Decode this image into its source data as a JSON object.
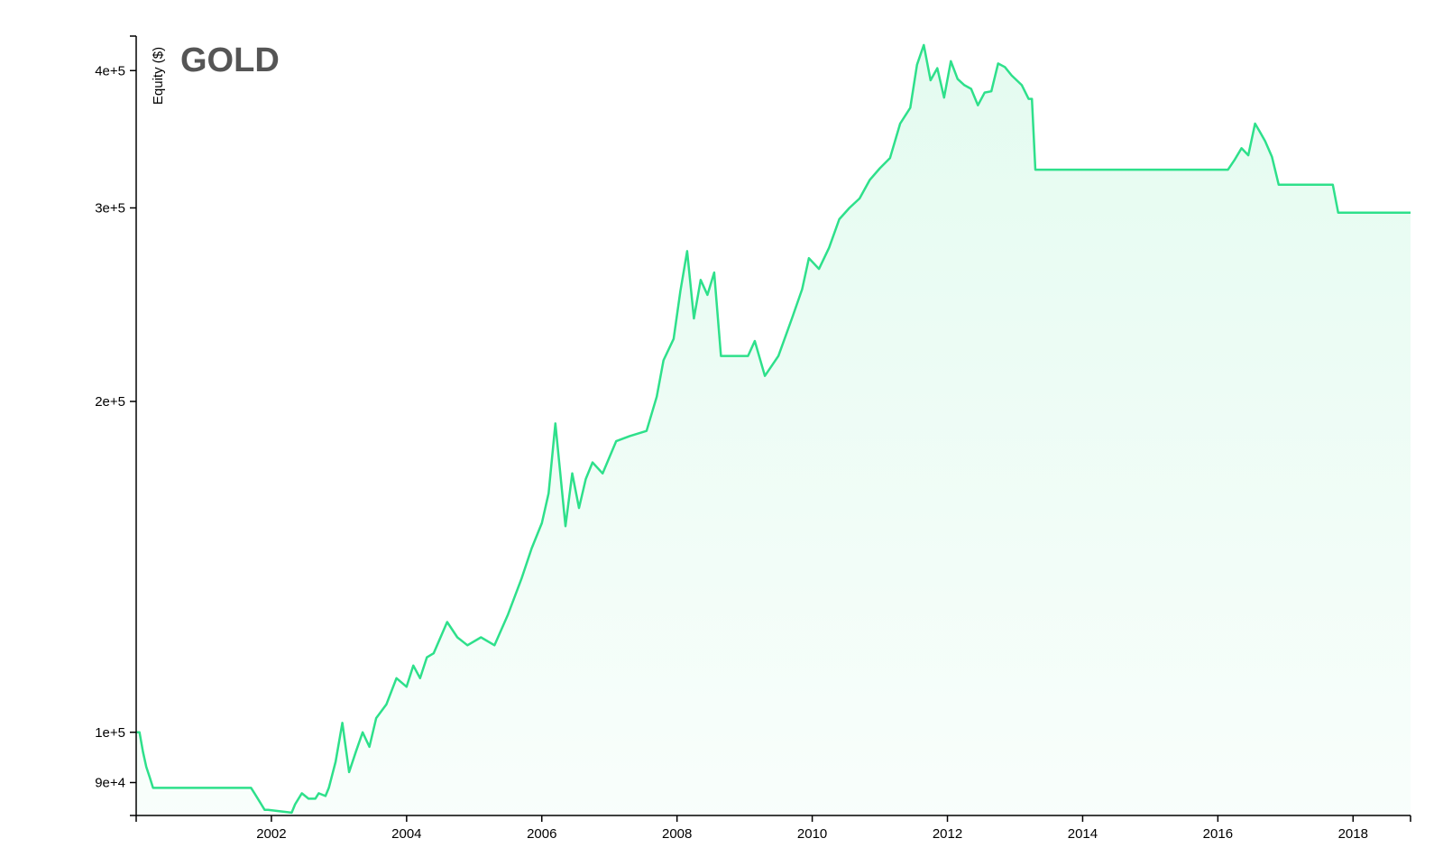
{
  "chart_data": {
    "type": "area",
    "title": "GOLD",
    "xlabel": "",
    "ylabel": "Equity ($)",
    "yscale": "log",
    "ylim": [
      84000,
      430000
    ],
    "xlim": [
      2000.0,
      2018.85
    ],
    "grid": false,
    "legend": "none",
    "line_color": "#2ee08b",
    "fill_color": "#2ee08b",
    "x_ticks": [
      2002,
      2004,
      2006,
      2008,
      2010,
      2012,
      2014,
      2016,
      2018
    ],
    "x_tick_labels": [
      "2002",
      "2004",
      "2006",
      "2008",
      "2010",
      "2012",
      "2014",
      "2016",
      "2018"
    ],
    "y_ticks": [
      90000,
      100000,
      200000,
      300000,
      400000
    ],
    "y_tick_labels": [
      "9e+4",
      "1e+5",
      "2e+5",
      "3e+5",
      "4e+5"
    ],
    "series": [
      {
        "x": [
          2000.0,
          2000.05,
          2000.1,
          2000.15,
          2000.2,
          2000.25,
          2001.7,
          2001.75,
          2001.85,
          2001.9,
          2001.95,
          2002.3,
          2002.35,
          2002.45,
          2002.55,
          2002.65,
          2002.7,
          2002.8,
          2002.85,
          2002.95,
          2003.05,
          2003.15,
          2003.25,
          2003.35,
          2003.45,
          2003.55,
          2003.7,
          2003.85,
          2004.0,
          2004.1,
          2004.2,
          2004.3,
          2004.4,
          2004.6,
          2004.75,
          2004.9,
          2005.1,
          2005.3,
          2005.5,
          2005.7,
          2005.85,
          2006.0,
          2006.1,
          2006.2,
          2006.35,
          2006.45,
          2006.55,
          2006.65,
          2006.75,
          2006.9,
          2007.1,
          2007.3,
          2007.55,
          2007.7,
          2007.8,
          2007.95,
          2008.05,
          2008.15,
          2008.25,
          2008.35,
          2008.45,
          2008.55,
          2008.65,
          2009.05,
          2009.15,
          2009.3,
          2009.5,
          2009.7,
          2009.85,
          2009.95,
          2010.1,
          2010.25,
          2010.4,
          2010.55,
          2010.7,
          2010.85,
          2011.0,
          2011.15,
          2011.3,
          2011.45,
          2011.55,
          2011.65,
          2011.75,
          2011.85,
          2011.95,
          2012.05,
          2012.15,
          2012.25,
          2012.35,
          2012.45,
          2012.55,
          2012.65,
          2012.75,
          2012.85,
          2012.95,
          2013.1,
          2013.2,
          2013.25,
          2013.3,
          2016.15,
          2016.25,
          2016.35,
          2016.45,
          2016.55,
          2016.62,
          2016.7,
          2016.8,
          2016.9,
          2017.0,
          2017.7,
          2017.78,
          2018.85
        ],
        "values": [
          100000,
          100000,
          96000,
          93000,
          91000,
          89000,
          89000,
          88000,
          86000,
          85000,
          85000,
          84500,
          86000,
          88000,
          87000,
          87000,
          88000,
          87500,
          89000,
          94000,
          102000,
          92000,
          96000,
          100000,
          97000,
          103000,
          106000,
          112000,
          110000,
          115000,
          112000,
          117000,
          118000,
          126000,
          122000,
          120000,
          122000,
          120000,
          128000,
          138000,
          147000,
          155000,
          165000,
          191000,
          154000,
          172000,
          160000,
          170000,
          176000,
          172000,
          184000,
          186000,
          188000,
          202000,
          218000,
          228000,
          252000,
          274000,
          238000,
          258000,
          250000,
          262000,
          220000,
          220000,
          227000,
          211000,
          220000,
          238000,
          253000,
          270000,
          264000,
          276000,
          293000,
          300000,
          306000,
          318000,
          326000,
          333000,
          358000,
          370000,
          405000,
          422000,
          392000,
          402000,
          378000,
          408000,
          393000,
          388000,
          385000,
          372000,
          382000,
          383000,
          406000,
          403000,
          396000,
          388000,
          377000,
          377000,
          325000,
          325000,
          332000,
          340000,
          335000,
          358000,
          352000,
          345000,
          334000,
          315000,
          315000,
          315000,
          297000,
          297000
        ]
      }
    ]
  }
}
